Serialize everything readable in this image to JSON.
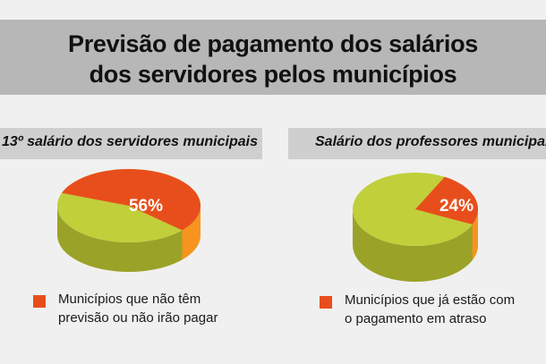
{
  "header": {
    "title_line1": "Previsão de pagamento dos salários",
    "title_line2": "dos servidores pelos municípios"
  },
  "chart_data": [
    {
      "type": "pie",
      "title": "13º salário dos servidores municipais",
      "slices": [
        {
          "label": "Municípios que não têm previsão ou não irão pagar",
          "value": 56,
          "color": "#e84e1b"
        },
        {
          "label": "",
          "value": 44,
          "color": "#c1cf3a"
        }
      ],
      "data_label": "56%",
      "legend": {
        "line1": "Municípios que não têm",
        "line2": "previsão ou não irão pagar",
        "color": "#e84e1b"
      }
    },
    {
      "type": "pie",
      "title": "Salário dos professores municipais",
      "slices": [
        {
          "label": "Municípios que já estão com o pagamento em atraso",
          "value": 24,
          "color": "#e84e1b"
        },
        {
          "label": "",
          "value": 76,
          "color": "#c1cf3a"
        }
      ],
      "data_label": "24%",
      "legend": {
        "line1": "Municípios que já estão com",
        "line2": "o pagamento em atraso",
        "color": "#e84e1b"
      }
    }
  ],
  "colors": {
    "highlight_top": "#e84e1b",
    "highlight_side": "#f7941d",
    "base_top": "#c1cf3a",
    "base_side": "#9aa328"
  }
}
